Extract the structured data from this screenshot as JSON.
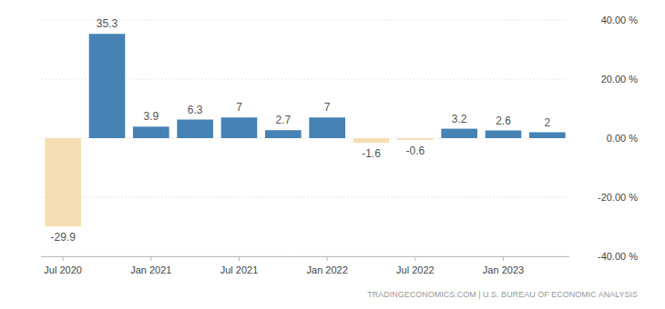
{
  "chart_data": {
    "type": "bar",
    "categories": [
      "Jul 2020",
      null,
      "Jan 2021",
      null,
      "Jul 2021",
      null,
      "Jan 2022",
      null,
      "Jul 2022",
      null,
      "Jan 2023",
      null
    ],
    "values": [
      -29.9,
      35.3,
      3.9,
      6.3,
      7,
      2.7,
      7,
      -1.6,
      -0.6,
      3.2,
      2.6,
      2
    ],
    "colors": [
      "#f5deb3",
      "#4682b4",
      "#4682b4",
      "#4682b4",
      "#4682b4",
      "#4682b4",
      "#4682b4",
      "#f5deb3",
      "#f5deb3",
      "#4682b4",
      "#4682b4",
      "#4682b4"
    ],
    "ylim": [
      -40,
      40
    ],
    "yticks": [
      {
        "value": -40,
        "label": "-40.00 %"
      },
      {
        "value": -20,
        "label": "-20.00 %"
      },
      {
        "value": 0,
        "label": "0.00 %"
      },
      {
        "value": 20,
        "label": "20.00 %"
      },
      {
        "value": 40,
        "label": "40.00 %"
      }
    ],
    "grid": true,
    "data_labels": true,
    "source": "TRADINGECONOMICS.COM | U.S. BUREAU OF ECONOMIC ANALYSIS"
  }
}
